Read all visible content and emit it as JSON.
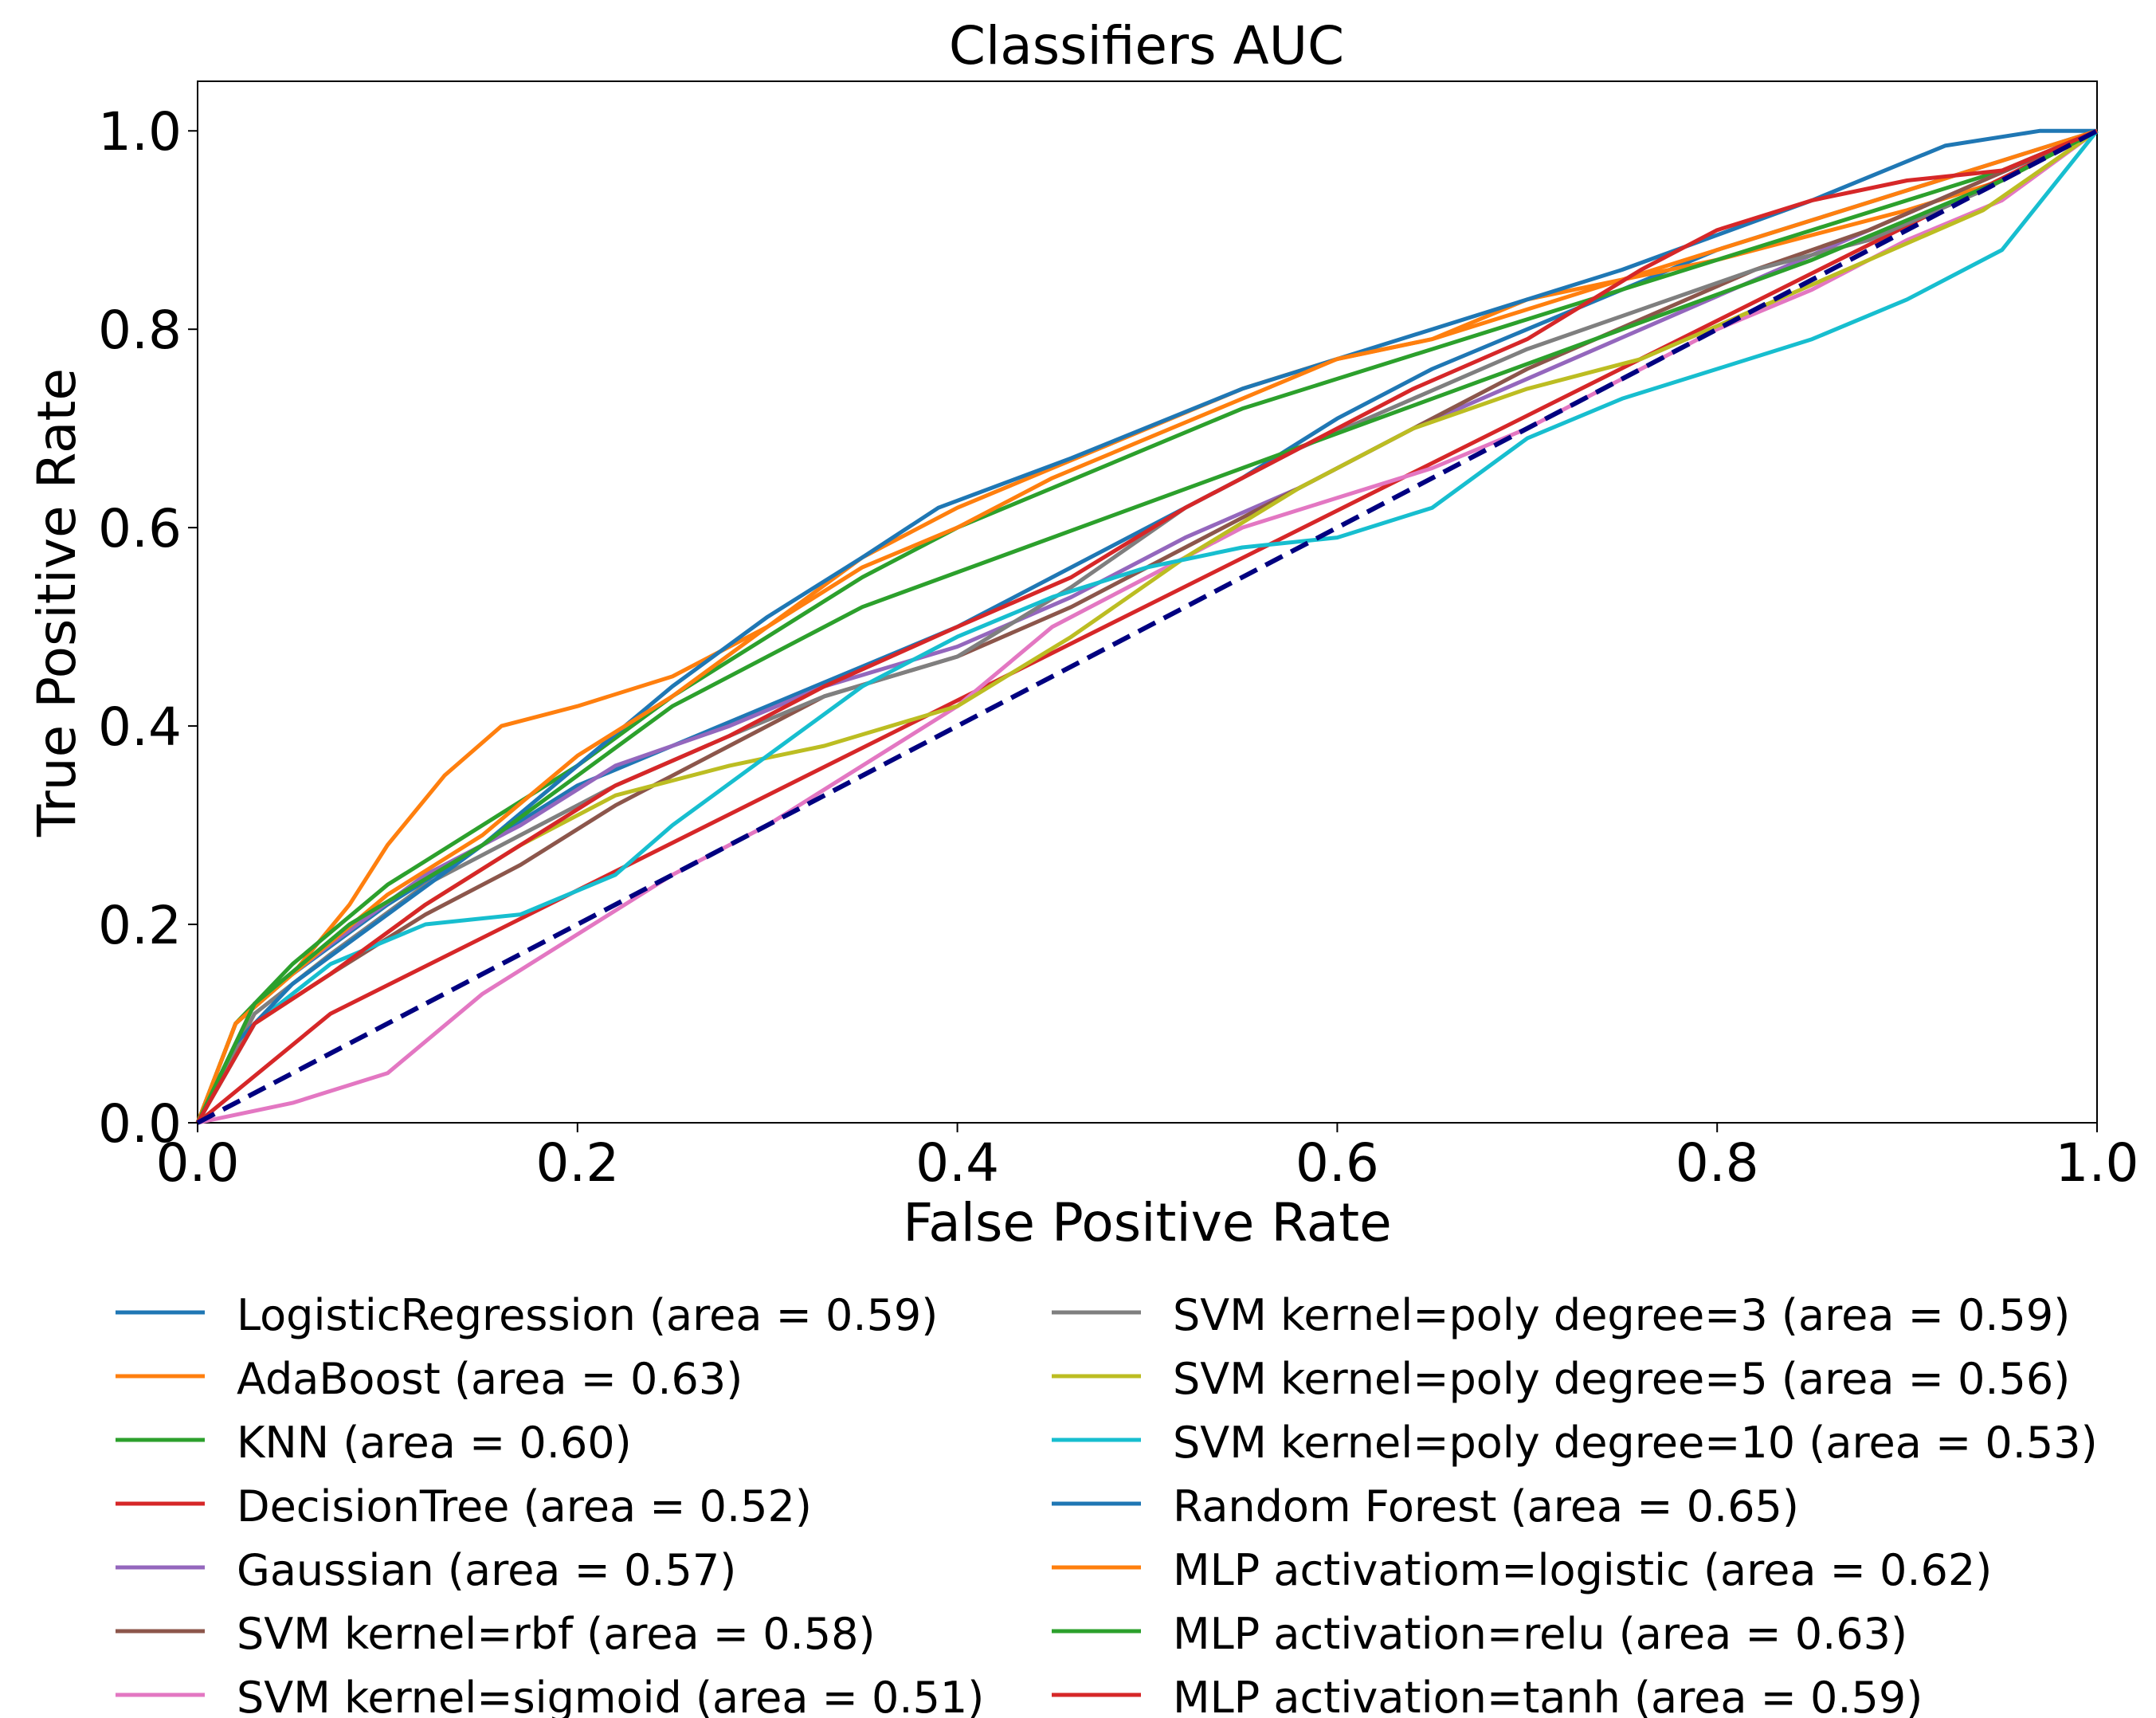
{
  "chart_data": {
    "type": "line",
    "title": "Classifiers AUC",
    "xlabel": "False Positive Rate",
    "ylabel": "True Positive Rate",
    "xlim": [
      0.0,
      1.0
    ],
    "ylim": [
      0.0,
      1.05
    ],
    "xticks": [
      0.0,
      0.2,
      0.4,
      0.6,
      0.8,
      1.0
    ],
    "xtick_labels": [
      "0.0",
      "0.2",
      "0.4",
      "0.6",
      "0.8",
      "1.0"
    ],
    "yticks": [
      0.0,
      0.2,
      0.4,
      0.6,
      0.8,
      1.0
    ],
    "ytick_labels": [
      "0.0",
      "0.2",
      "0.4",
      "0.6",
      "0.8",
      "1.0"
    ],
    "grid": false,
    "legend_position": "below plot, two columns",
    "reference_line": {
      "style": "dashed",
      "color": "#000080",
      "x": [
        0,
        1
      ],
      "y": [
        0,
        1
      ]
    },
    "series": [
      {
        "name": "LogisticRegression (area = 0.59)",
        "color": "#1f77b4",
        "x": [
          0,
          0.02,
          0.05,
          0.1,
          0.15,
          0.2,
          0.25,
          0.3,
          0.35,
          0.4,
          0.45,
          0.5,
          0.55,
          0.6,
          0.65,
          0.7,
          0.75,
          0.8,
          0.85,
          0.9,
          0.95,
          1.0
        ],
        "y": [
          0,
          0.1,
          0.15,
          0.22,
          0.28,
          0.34,
          0.38,
          0.42,
          0.46,
          0.5,
          0.55,
          0.6,
          0.65,
          0.71,
          0.76,
          0.8,
          0.84,
          0.88,
          0.91,
          0.94,
          0.97,
          1.0
        ]
      },
      {
        "name": "AdaBoost (area = 0.63)",
        "color": "#ff7f0e",
        "x": [
          0,
          0.02,
          0.05,
          0.08,
          0.1,
          0.13,
          0.16,
          0.2,
          0.25,
          0.3,
          0.35,
          0.4,
          0.45,
          0.5,
          0.55,
          0.6,
          0.65,
          0.7,
          0.8,
          0.9,
          0.95,
          1.0
        ],
        "y": [
          0,
          0.1,
          0.15,
          0.22,
          0.28,
          0.35,
          0.4,
          0.42,
          0.45,
          0.5,
          0.57,
          0.62,
          0.66,
          0.7,
          0.74,
          0.77,
          0.79,
          0.83,
          0.87,
          0.92,
          0.95,
          1.0
        ]
      },
      {
        "name": "KNN (area = 0.60)",
        "color": "#2ca02c",
        "x": [
          0,
          0.02,
          0.05,
          0.1,
          0.15,
          0.2,
          0.25,
          0.3,
          0.35,
          0.4,
          0.45,
          0.5,
          0.55,
          0.6,
          0.65,
          0.7,
          0.75,
          0.8,
          0.85,
          0.9,
          0.95,
          1.0
        ],
        "y": [
          0,
          0.1,
          0.16,
          0.24,
          0.3,
          0.36,
          0.43,
          0.49,
          0.55,
          0.6,
          0.64,
          0.68,
          0.72,
          0.75,
          0.78,
          0.81,
          0.84,
          0.87,
          0.9,
          0.93,
          0.96,
          1.0
        ]
      },
      {
        "name": "DecisionTree (area = 0.52)",
        "color": "#d62728",
        "x": [
          0,
          0.07,
          1.0
        ],
        "y": [
          0,
          0.11,
          1.0
        ]
      },
      {
        "name": "Gaussian (area = 0.57)",
        "color": "#9467bd",
        "x": [
          0,
          0.03,
          0.07,
          0.12,
          0.17,
          0.22,
          0.28,
          0.33,
          0.4,
          0.46,
          0.52,
          0.58,
          0.64,
          0.7,
          0.76,
          0.82,
          0.88,
          0.94,
          1.0
        ],
        "y": [
          0,
          0.12,
          0.18,
          0.25,
          0.3,
          0.36,
          0.4,
          0.44,
          0.48,
          0.53,
          0.59,
          0.64,
          0.7,
          0.75,
          0.8,
          0.85,
          0.9,
          0.95,
          1.0
        ]
      },
      {
        "name": "SVM kernel=rbf  (area = 0.58)",
        "color": "#8c564b",
        "x": [
          0,
          0.03,
          0.07,
          0.12,
          0.17,
          0.22,
          0.28,
          0.33,
          0.4,
          0.46,
          0.52,
          0.58,
          0.64,
          0.7,
          0.76,
          0.82,
          0.88,
          0.94,
          1.0
        ],
        "y": [
          0,
          0.1,
          0.15,
          0.21,
          0.26,
          0.32,
          0.38,
          0.43,
          0.47,
          0.52,
          0.58,
          0.64,
          0.7,
          0.76,
          0.81,
          0.86,
          0.9,
          0.95,
          1.0
        ]
      },
      {
        "name": "SVM kernel=sigmoid  (area = 0.51)",
        "color": "#e377c2",
        "x": [
          0,
          0.05,
          0.1,
          0.15,
          0.2,
          0.25,
          0.3,
          0.35,
          0.4,
          0.45,
          0.5,
          0.55,
          0.6,
          0.65,
          0.7,
          0.75,
          0.8,
          0.85,
          0.9,
          0.95,
          1.0
        ],
        "y": [
          0,
          0.02,
          0.05,
          0.13,
          0.19,
          0.25,
          0.3,
          0.36,
          0.42,
          0.5,
          0.55,
          0.6,
          0.63,
          0.66,
          0.7,
          0.75,
          0.8,
          0.84,
          0.89,
          0.93,
          1.0
        ]
      },
      {
        "name": "SVM kernel=poly degree=3 (area = 0.59)",
        "color": "#7f7f7f",
        "x": [
          0,
          0.03,
          0.07,
          0.12,
          0.17,
          0.22,
          0.28,
          0.33,
          0.4,
          0.46,
          0.52,
          0.58,
          0.64,
          0.7,
          0.76,
          0.82,
          0.88,
          0.94,
          1.0
        ],
        "y": [
          0,
          0.11,
          0.17,
          0.24,
          0.29,
          0.34,
          0.39,
          0.43,
          0.47,
          0.54,
          0.62,
          0.68,
          0.73,
          0.78,
          0.82,
          0.86,
          0.89,
          0.94,
          1.0
        ]
      },
      {
        "name": "SVM kernel=poly degree=5 (area = 0.56)",
        "color": "#bcbd22",
        "x": [
          0,
          0.03,
          0.07,
          0.12,
          0.17,
          0.22,
          0.28,
          0.33,
          0.4,
          0.46,
          0.52,
          0.58,
          0.64,
          0.7,
          0.76,
          0.82,
          0.88,
          0.94,
          1.0
        ],
        "y": [
          0,
          0.1,
          0.15,
          0.22,
          0.28,
          0.33,
          0.36,
          0.38,
          0.42,
          0.49,
          0.57,
          0.64,
          0.7,
          0.74,
          0.77,
          0.82,
          0.87,
          0.92,
          1.0
        ]
      },
      {
        "name": "SVM kernel=poly degree=10 (area = 0.53)",
        "color": "#17becf",
        "x": [
          0,
          0.03,
          0.07,
          0.12,
          0.17,
          0.22,
          0.25,
          0.3,
          0.35,
          0.4,
          0.45,
          0.5,
          0.55,
          0.6,
          0.65,
          0.7,
          0.75,
          0.8,
          0.85,
          0.9,
          0.95,
          1.0
        ],
        "y": [
          0,
          0.1,
          0.16,
          0.2,
          0.21,
          0.25,
          0.3,
          0.37,
          0.44,
          0.49,
          0.53,
          0.56,
          0.58,
          0.59,
          0.62,
          0.69,
          0.73,
          0.76,
          0.79,
          0.83,
          0.88,
          1.0
        ]
      },
      {
        "name": "Random Forest (area = 0.65)",
        "color": "#1f77b4",
        "x": [
          0,
          0.02,
          0.05,
          0.1,
          0.15,
          0.2,
          0.25,
          0.3,
          0.35,
          0.39,
          0.46,
          0.55,
          0.65,
          0.75,
          0.85,
          0.92,
          0.97,
          1.0
        ],
        "y": [
          0,
          0.08,
          0.14,
          0.21,
          0.28,
          0.36,
          0.44,
          0.51,
          0.57,
          0.62,
          0.67,
          0.74,
          0.8,
          0.86,
          0.93,
          0.985,
          1.0,
          1.0
        ]
      },
      {
        "name": "MLP activatiom=logistic (area = 0.62)",
        "color": "#ff7f0e",
        "x": [
          0,
          0.02,
          0.05,
          0.1,
          0.15,
          0.2,
          0.25,
          0.3,
          0.35,
          0.4,
          0.45,
          0.5,
          0.55,
          0.6,
          0.65,
          0.7,
          0.75,
          0.8,
          0.85,
          0.9,
          0.95,
          1.0
        ],
        "y": [
          0,
          0.1,
          0.15,
          0.23,
          0.29,
          0.37,
          0.43,
          0.5,
          0.56,
          0.6,
          0.65,
          0.69,
          0.73,
          0.77,
          0.79,
          0.82,
          0.85,
          0.88,
          0.91,
          0.94,
          0.97,
          1.0
        ]
      },
      {
        "name": "MLP activation=relu (area = 0.63)",
        "color": "#2ca02c",
        "x": [
          0,
          1.0
        ],
        "y": [
          0,
          1.0
        ],
        "x_full": [
          0,
          0.03,
          0.08,
          0.15,
          0.25,
          0.35,
          0.45,
          0.55,
          0.65,
          0.75,
          0.85,
          0.95,
          1.0
        ],
        "y_full": [
          0,
          0.12,
          0.2,
          0.28,
          0.42,
          0.52,
          0.59,
          0.66,
          0.73,
          0.8,
          0.87,
          0.95,
          1.0
        ]
      },
      {
        "name": "MLP activation=tanh (area = 0.59)",
        "color": "#d62728",
        "x": [
          0,
          0.03,
          0.07,
          0.12,
          0.17,
          0.22,
          0.28,
          0.33,
          0.4,
          0.46,
          0.52,
          0.58,
          0.64,
          0.7,
          0.76,
          0.8,
          0.85,
          0.9,
          0.95,
          1.0
        ],
        "y": [
          0,
          0.1,
          0.15,
          0.22,
          0.28,
          0.34,
          0.39,
          0.44,
          0.5,
          0.55,
          0.62,
          0.68,
          0.74,
          0.79,
          0.86,
          0.9,
          0.93,
          0.95,
          0.96,
          1.0
        ]
      }
    ]
  }
}
